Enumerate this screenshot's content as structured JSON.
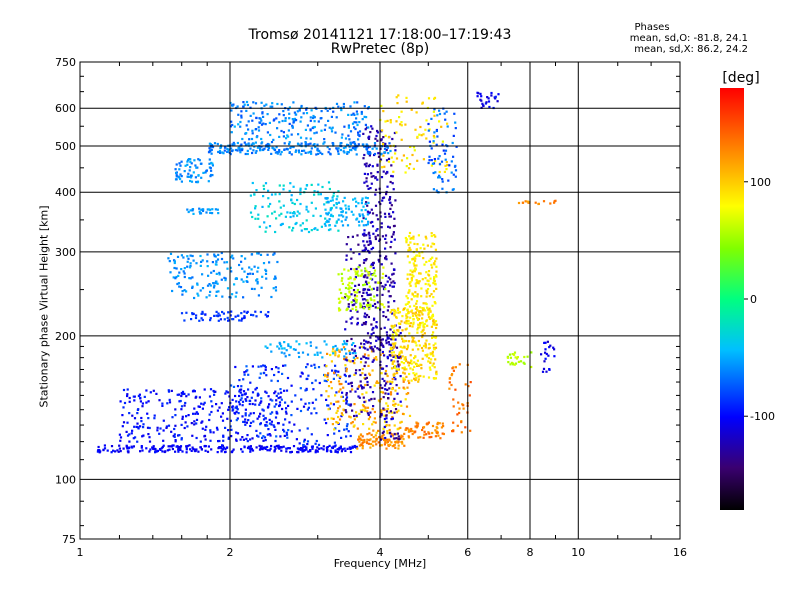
{
  "header": {
    "title_line1": "Tromsø 20141121 17:18:00–17:19:43",
    "title_line2": "RwPretec (8p)",
    "stats_heading": "Phases",
    "stats_o": "mean, sd,O: -81.8, 24.1",
    "stats_x": "mean, sd,X: 86.2, 24.2"
  },
  "colorbar": {
    "unit": "[deg]",
    "range": [
      -180,
      180
    ],
    "ticks": [
      {
        "value": 100,
        "label": "100"
      },
      {
        "value": 0,
        "label": "0"
      },
      {
        "value": -100,
        "label": "-100"
      }
    ]
  },
  "chart_data": {
    "type": "scatter",
    "title": "Tromsø 20141121 17:18:00–17:19:43",
    "subtitle": "RwPretec (8p)",
    "xlabel": "Frequency [MHz]",
    "ylabel": "Stationary phase Virtual Height [km]",
    "x_scale": "log",
    "y_scale": "log",
    "xlim": [
      1,
      16
    ],
    "ylim": [
      75,
      750
    ],
    "grid": true,
    "x_ticks": [
      {
        "value": 1,
        "label": "1"
      },
      {
        "value": 2,
        "label": "2"
      },
      {
        "value": 4,
        "label": "4"
      },
      {
        "value": 6,
        "label": "6"
      },
      {
        "value": 8,
        "label": "8"
      },
      {
        "value": 10,
        "label": "10"
      },
      {
        "value": 16,
        "label": "16"
      }
    ],
    "y_ticks": [
      {
        "value": 75,
        "label": "75"
      },
      {
        "value": 100,
        "label": "100"
      },
      {
        "value": 200,
        "label": "200"
      },
      {
        "value": 300,
        "label": "300"
      },
      {
        "value": 400,
        "label": "400"
      },
      {
        "value": 500,
        "label": "500"
      },
      {
        "value": 600,
        "label": "600"
      },
      {
        "value": 750,
        "label": "750"
      }
    ],
    "color_value": "phase [deg]",
    "clusters": [
      {
        "x": [
          1.08,
          3.6
        ],
        "y": [
          114,
          118
        ],
        "phase": [
          -110,
          -95
        ],
        "n": 260
      },
      {
        "x": [
          3.6,
          4.5
        ],
        "y": [
          116,
          125
        ],
        "phase": [
          110,
          140
        ],
        "n": 90
      },
      {
        "x": [
          4.5,
          5.4
        ],
        "y": [
          122,
          132
        ],
        "phase": [
          115,
          145
        ],
        "n": 60
      },
      {
        "x": [
          5.5,
          6.1
        ],
        "y": [
          125,
          175
        ],
        "phase": [
          120,
          150
        ],
        "n": 40
      },
      {
        "x": [
          1.2,
          2.6
        ],
        "y": [
          120,
          155
        ],
        "phase": [
          -110,
          -85
        ],
        "n": 320
      },
      {
        "x": [
          2.0,
          3.5
        ],
        "y": [
          118,
          175
        ],
        "phase": [
          -105,
          -70
        ],
        "n": 200
      },
      {
        "x": [
          3.1,
          4.6
        ],
        "y": [
          125,
          190
        ],
        "phase": [
          85,
          130
        ],
        "n": 220
      },
      {
        "x": [
          3.4,
          3.9
        ],
        "y": [
          135,
          330
        ],
        "phase": [
          -140,
          -110
        ],
        "n": 150
      },
      {
        "x": [
          4.0,
          4.4
        ],
        "y": [
          120,
          210
        ],
        "phase": [
          -145,
          -105
        ],
        "n": 90
      },
      {
        "x": [
          3.7,
          4.3
        ],
        "y": [
          180,
          560
        ],
        "phase": [
          -140,
          -110
        ],
        "n": 300
      },
      {
        "x": [
          4.2,
          5.2
        ],
        "y": [
          160,
          230
        ],
        "phase": [
          75,
          110
        ],
        "n": 260
      },
      {
        "x": [
          4.5,
          5.2
        ],
        "y": [
          210,
          330
        ],
        "phase": [
          75,
          100
        ],
        "n": 200
      },
      {
        "x": [
          3.3,
          4.1
        ],
        "y": [
          225,
          280
        ],
        "phase": [
          50,
          75
        ],
        "n": 110
      },
      {
        "x": [
          1.5,
          2.5
        ],
        "y": [
          240,
          300
        ],
        "phase": [
          -70,
          -45
        ],
        "n": 170
      },
      {
        "x": [
          1.6,
          2.4
        ],
        "y": [
          215,
          225
        ],
        "phase": [
          -95,
          -80
        ],
        "n": 60
      },
      {
        "x": [
          2.3,
          3.6
        ],
        "y": [
          180,
          195
        ],
        "phase": [
          -60,
          -40
        ],
        "n": 60
      },
      {
        "x": [
          2.2,
          3.3
        ],
        "y": [
          330,
          420
        ],
        "phase": [
          -50,
          -20
        ],
        "n": 130
      },
      {
        "x": [
          3.1,
          3.8
        ],
        "y": [
          340,
          390
        ],
        "phase": [
          -55,
          -40
        ],
        "n": 80
      },
      {
        "x": [
          1.55,
          1.85
        ],
        "y": [
          420,
          470
        ],
        "phase": [
          -70,
          -45
        ],
        "n": 70
      },
      {
        "x": [
          1.8,
          4.2
        ],
        "y": [
          480,
          510
        ],
        "phase": [
          -75,
          -50
        ],
        "n": 240
      },
      {
        "x": [
          2.0,
          3.8
        ],
        "y": [
          515,
          620
        ],
        "phase": [
          -80,
          -45
        ],
        "n": 220
      },
      {
        "x": [
          4.0,
          5.6
        ],
        "y": [
          440,
          640
        ],
        "phase": [
          70,
          110
        ],
        "n": 90
      },
      {
        "x": [
          5.0,
          5.7
        ],
        "y": [
          400,
          600
        ],
        "phase": [
          -90,
          -55
        ],
        "n": 70
      },
      {
        "x": [
          1.6,
          1.9
        ],
        "y": [
          360,
          370
        ],
        "phase": [
          -65,
          -45
        ],
        "n": 25
      },
      {
        "x": [
          6.2,
          7.0
        ],
        "y": [
          600,
          650
        ],
        "phase": [
          -120,
          -90
        ],
        "n": 25
      },
      {
        "x": [
          7.2,
          8.1
        ],
        "y": [
          172,
          185
        ],
        "phase": [
          50,
          70
        ],
        "n": 25
      },
      {
        "x": [
          8.4,
          9.0
        ],
        "y": [
          168,
          195
        ],
        "phase": [
          -120,
          -95
        ],
        "n": 20
      },
      {
        "x": [
          7.6,
          9.0
        ],
        "y": [
          378,
          384
        ],
        "phase": [
          110,
          140
        ],
        "n": 15
      }
    ]
  }
}
